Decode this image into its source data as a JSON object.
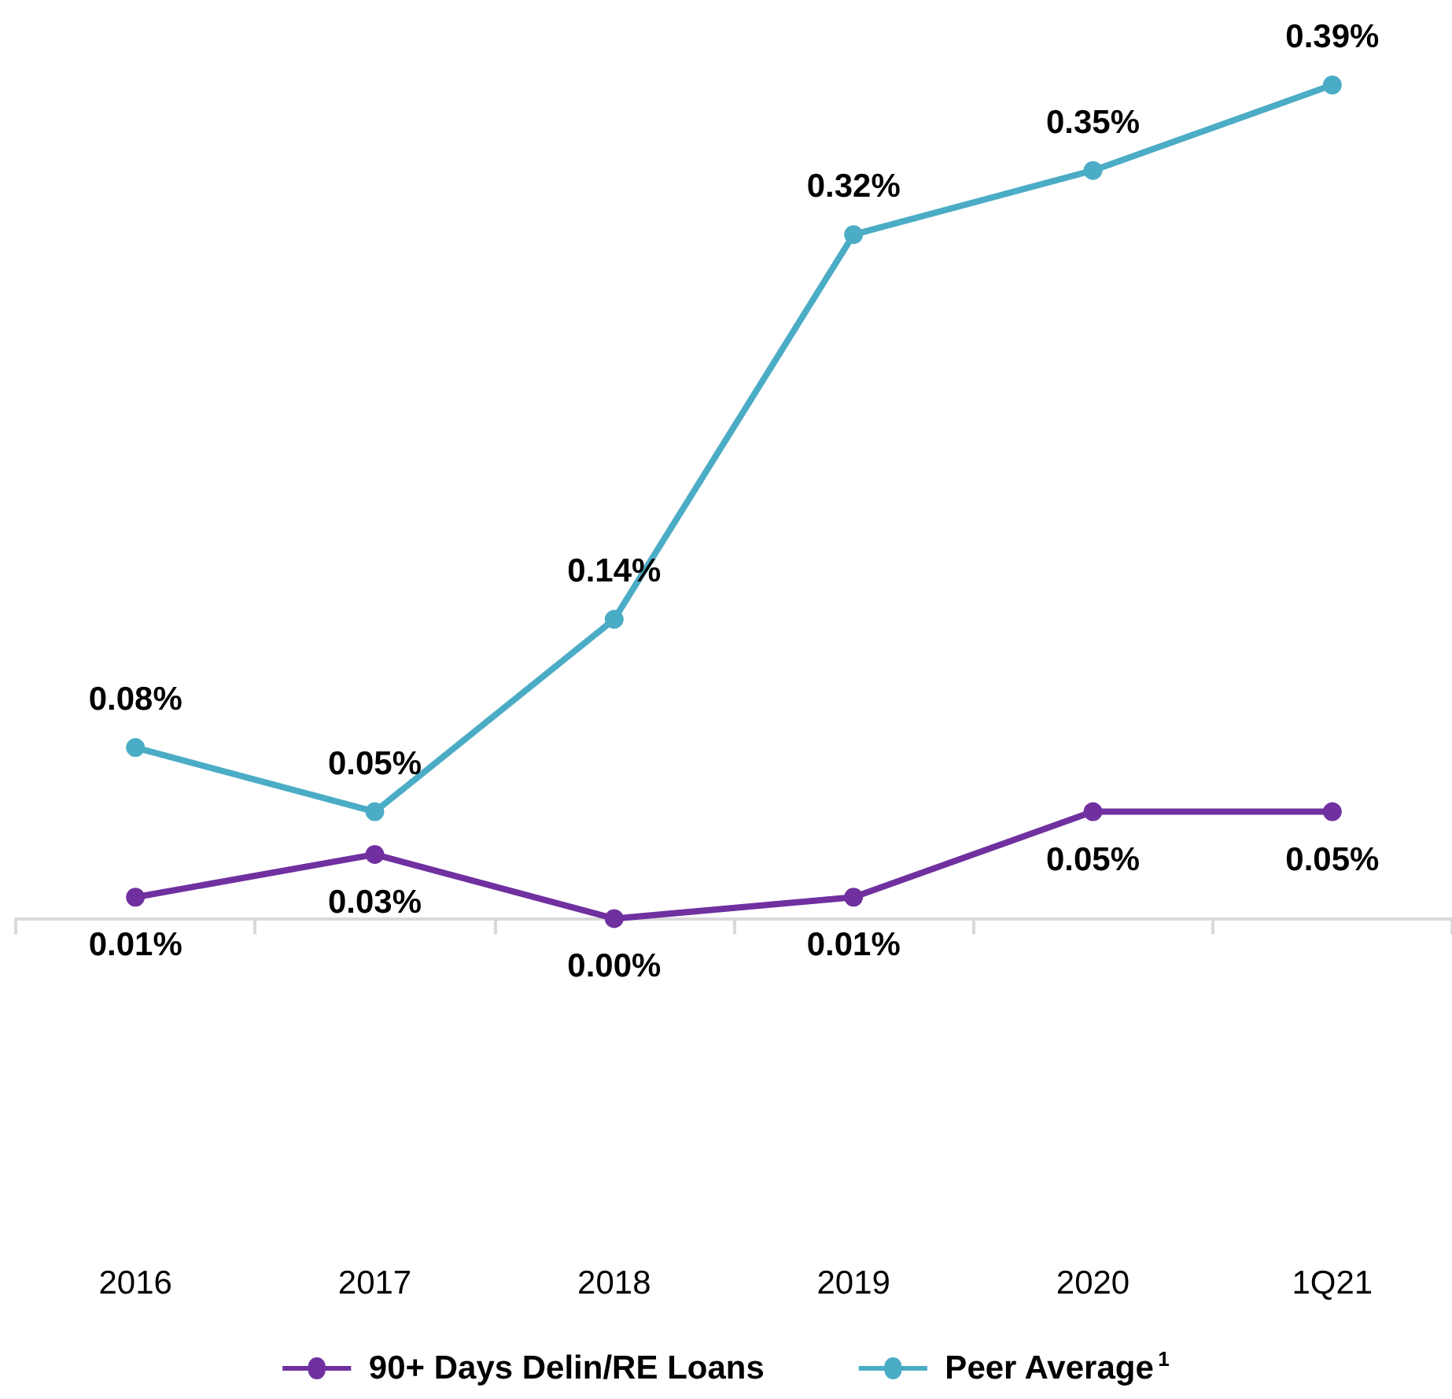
{
  "chart_data": {
    "type": "line",
    "categories": [
      "2016",
      "2017",
      "2018",
      "2019",
      "2020",
      "1Q21"
    ],
    "series": [
      {
        "name": "90+ Days Delin/RE Loans",
        "color": "#7030a0",
        "values": [
          0.01,
          0.03,
          0.0,
          0.01,
          0.05,
          0.05
        ],
        "value_labels": [
          "0.01%",
          "0.03%",
          "0.00%",
          "0.01%",
          "0.05%",
          "0.05%"
        ]
      },
      {
        "name": "Peer Average$^{1}$",
        "color": "#4bacc6",
        "values": [
          0.08,
          0.05,
          0.14,
          0.32,
          0.35,
          0.39
        ],
        "value_labels": [
          "0.08%",
          "0.05%",
          "0.14%",
          "0.32%",
          "0.35%",
          "0.39%"
        ]
      }
    ],
    "tick_labels": "x",
    "legend": "bottom",
    "marker": "circle",
    "line_style": "solid",
    "grid": false
  }
}
